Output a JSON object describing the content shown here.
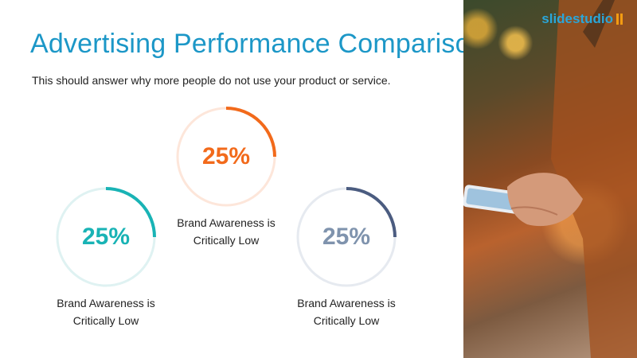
{
  "slide": {
    "title": "Advertising Performance Comparison",
    "subtitle": "This should answer why more people do not use your product or service."
  },
  "metrics": [
    {
      "value_text": "25%",
      "value": 25,
      "caption_line1": "Brand Awareness is",
      "caption_line2": "Critically Low",
      "color": "#19b3b5",
      "track_color": "#dff2f2"
    },
    {
      "value_text": "25%",
      "value": 25,
      "caption_line1": "Brand Awareness is",
      "caption_line2": "Critically Low",
      "color": "#f26a1b",
      "track_color": "#fde6da"
    },
    {
      "value_text": "25%",
      "value": 25,
      "caption_line1": "Brand Awareness is",
      "caption_line2": "Critically Low",
      "color": "#7f93ad",
      "track_color": "#e6eaf0",
      "arc_color": "#4b5c80"
    }
  ],
  "brand": {
    "name": "slidestudio",
    "color": "#2aa6d9"
  }
}
